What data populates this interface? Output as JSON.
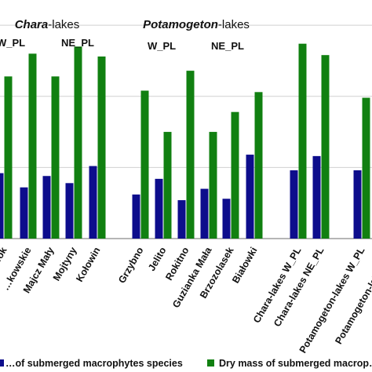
{
  "chart_data": {
    "type": "bar",
    "groups": [
      {
        "title_italic": "Chara",
        "title_rest": "-lakes",
        "subgroups": [
          {
            "label": "W_PL",
            "categories": [
              "…ok",
              "…kowskie"
            ]
          },
          {
            "label": "NE_PL",
            "categories": [
              "Majcz Mały",
              "Mojtyny",
              "Kołowin"
            ]
          }
        ]
      },
      {
        "title_italic": "Potamogeton",
        "title_rest": "-lakes",
        "subgroups": [
          {
            "label": "W_PL",
            "categories": [
              "Grzybno",
              "Jelito",
              "Rokitno"
            ]
          },
          {
            "label": "NE_PL",
            "categories": [
              "Guzianka Mała",
              "Brzozolasek",
              "Białowki"
            ]
          }
        ]
      }
    ],
    "categories": [
      "…ok",
      "…kowskie",
      "Majcz Mały",
      "Mojtyny",
      "Kołowin",
      "Grzybno",
      "Jelito",
      "Rokitno",
      "Guzianka Mała",
      "Brzozolasek",
      "Białowki",
      "Chara-lakes W_PL",
      "Chara-lakes NE_PL",
      "Potamogeton-lakes W_PL",
      "Potamogeton-lakes N…"
    ],
    "series": [
      {
        "name": "…of submerged macrophytes species",
        "color": "#0d0d8c",
        "values": [
          4.6,
          3.6,
          4.4,
          3.9,
          5.1,
          3.1,
          4.2,
          2.7,
          3.5,
          2.8,
          5.9,
          4.8,
          5.8,
          4.8,
          null
        ]
      },
      {
        "name": "Dry mass of submerged macrop…",
        "color": "#118011",
        "values": [
          11.4,
          13.0,
          11.4,
          13.5,
          12.8,
          10.4,
          7.5,
          11.8,
          7.5,
          8.9,
          10.3,
          13.7,
          12.9,
          9.9,
          null
        ]
      }
    ],
    "ylim": [
      0,
      16
    ],
    "gridlines": [
      0,
      5,
      10,
      15
    ],
    "grid": true,
    "legend_position": "bottom"
  }
}
